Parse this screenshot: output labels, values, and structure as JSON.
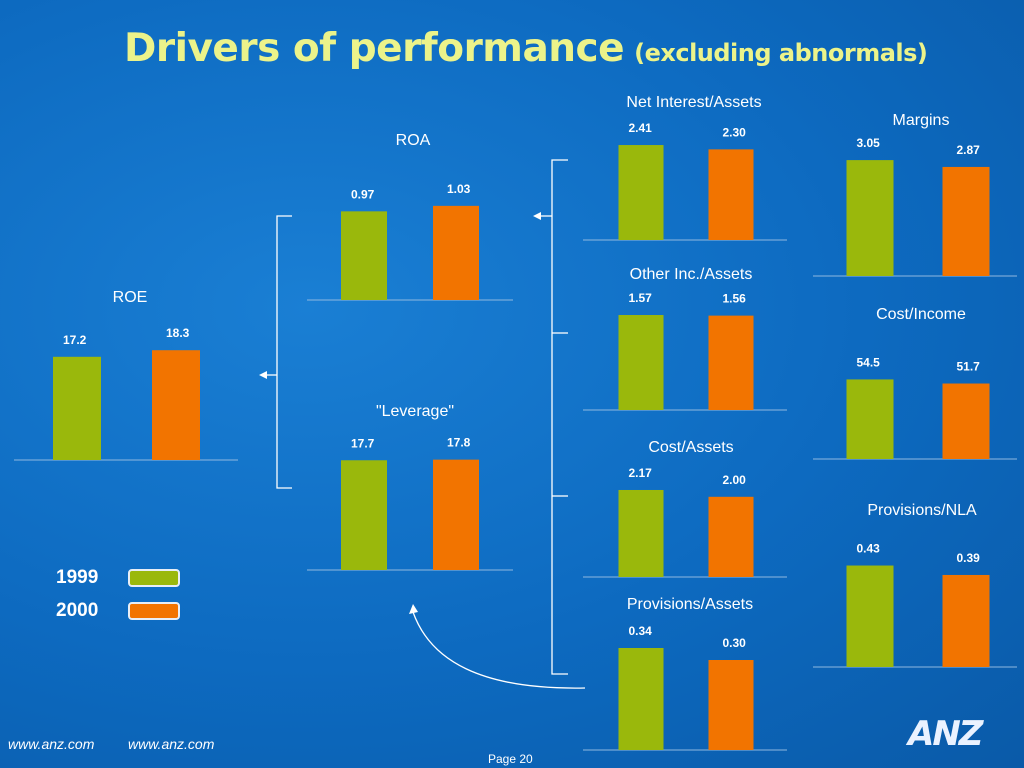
{
  "header": {
    "title": "Drivers of performance",
    "subtitle": "(excluding abnormals)"
  },
  "colors": {
    "y1999": "#9ab80c",
    "y2000": "#f27400",
    "title": "#ecf38a"
  },
  "legend": [
    {
      "label": "1999",
      "color": "#9ab80c"
    },
    {
      "label": "2000",
      "color": "#f27400"
    }
  ],
  "chart_data": [
    {
      "type": "bar",
      "title": "ROE",
      "categories": [
        "1999",
        "2000"
      ],
      "values": [
        17.2,
        18.3
      ],
      "value_labels": [
        "17.2",
        "18.3"
      ]
    },
    {
      "type": "bar",
      "title": "ROA",
      "categories": [
        "1999",
        "2000"
      ],
      "values": [
        0.97,
        1.03
      ],
      "value_labels": [
        "0.97",
        "1.03"
      ]
    },
    {
      "type": "bar",
      "title": "\"Leverage\"",
      "categories": [
        "1999",
        "2000"
      ],
      "values": [
        17.7,
        17.8
      ],
      "value_labels": [
        "17.7",
        "17.8"
      ]
    },
    {
      "type": "bar",
      "title": "Net Interest/Assets",
      "categories": [
        "1999",
        "2000"
      ],
      "values": [
        2.41,
        2.3
      ],
      "value_labels": [
        "2.41",
        "2.30"
      ]
    },
    {
      "type": "bar",
      "title": "Other Inc./Assets",
      "categories": [
        "1999",
        "2000"
      ],
      "values": [
        1.57,
        1.56
      ],
      "value_labels": [
        "1.57",
        "1.56"
      ]
    },
    {
      "type": "bar",
      "title": "Cost/Assets",
      "categories": [
        "1999",
        "2000"
      ],
      "values": [
        2.17,
        2.0
      ],
      "value_labels": [
        "2.17",
        "2.00"
      ]
    },
    {
      "type": "bar",
      "title": "Provisions/Assets",
      "categories": [
        "1999",
        "2000"
      ],
      "values": [
        0.34,
        0.3
      ],
      "value_labels": [
        "0.34",
        "0.30"
      ]
    },
    {
      "type": "bar",
      "title": "Margins",
      "categories": [
        "1999",
        "2000"
      ],
      "values": [
        3.05,
        2.87
      ],
      "value_labels": [
        "3.05",
        "2.87"
      ]
    },
    {
      "type": "bar",
      "title": "Cost/Income",
      "categories": [
        "1999",
        "2000"
      ],
      "values": [
        54.5,
        51.7
      ],
      "value_labels": [
        "54.5",
        "51.7"
      ]
    },
    {
      "type": "bar",
      "title": "Provisions/NLA",
      "categories": [
        "1999",
        "2000"
      ],
      "values": [
        0.43,
        0.39
      ],
      "value_labels": [
        "0.43",
        "0.39"
      ]
    }
  ],
  "footer": {
    "url1": "www.anz.com",
    "url2": "www.anz.com",
    "page": "Page 20",
    "logo": "ANZ"
  }
}
